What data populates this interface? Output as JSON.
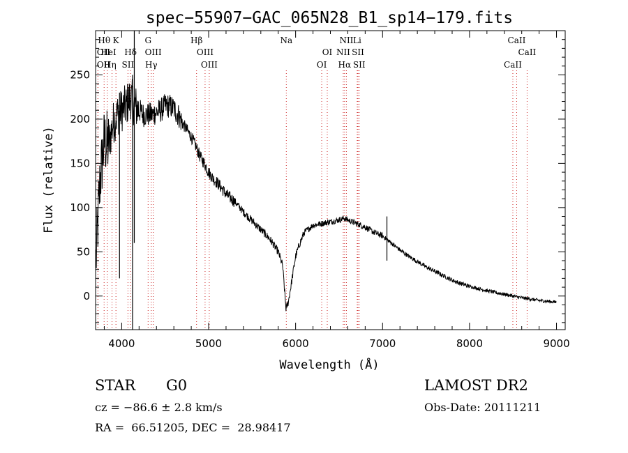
{
  "chart_data": {
    "type": "line",
    "title": "spec−55907−GAC_065N28_B1_sp14−179.fits",
    "xlabel": "Wavelength (Å)",
    "ylabel": "Flux (relative)",
    "xlim": [
      3700,
      9100
    ],
    "ylim": [
      -38,
      300
    ],
    "xticks": [
      4000,
      5000,
      6000,
      7000,
      8000,
      9000
    ],
    "xtick_labels": [
      "4000",
      "5000",
      "6000",
      "7000",
      "8000",
      "9000"
    ],
    "yticks": [
      0,
      50,
      100,
      150,
      200,
      250
    ],
    "ytick_labels": [
      "0",
      "50",
      "100",
      "150",
      "200",
      "250"
    ],
    "grid": false,
    "line_color": "#000000",
    "marker_color": "#cc2222",
    "spectrum_envelope": {
      "x": [
        3705,
        3750,
        3800,
        3850,
        3900,
        3950,
        4000,
        4050,
        4100,
        4150,
        4200,
        4250,
        4300,
        4350,
        4400,
        4450,
        4500,
        4550,
        4600,
        4650,
        4700,
        4750,
        4800,
        4850,
        4900,
        4950,
        5000,
        5050,
        5100,
        5150,
        5200,
        5300,
        5400,
        5500,
        5600,
        5700,
        5800,
        5850,
        5890,
        5920,
        5960,
        6000,
        6050,
        6100,
        6200,
        6300,
        6400,
        6500,
        6560,
        6600,
        6650,
        6700,
        6800,
        6900,
        7000,
        7100,
        7200,
        7300,
        7400,
        7500,
        7600,
        7700,
        7800,
        7900,
        8000,
        8200,
        8400,
        8600,
        8800,
        9000
      ],
      "y": [
        40,
        130,
        175,
        170,
        195,
        205,
        210,
        215,
        225,
        215,
        210,
        205,
        205,
        205,
        208,
        210,
        215,
        215,
        212,
        205,
        195,
        188,
        180,
        170,
        158,
        150,
        140,
        133,
        128,
        122,
        115,
        107,
        95,
        85,
        75,
        65,
        50,
        35,
        -15,
        -5,
        20,
        45,
        60,
        72,
        80,
        82,
        84,
        86,
        88,
        86,
        84,
        82,
        78,
        72,
        68,
        60,
        52,
        45,
        39,
        33,
        28,
        23,
        18,
        14,
        11,
        6,
        2,
        -2,
        -5,
        -7
      ]
    },
    "line_markers": [
      {
        "label": "Hθ",
        "wavelength": 3798,
        "row": 0,
        "dx": 0
      },
      {
        "label": "K",
        "wavelength": 3934,
        "row": 0,
        "dx": 0
      },
      {
        "label": "G",
        "wavelength": 4304,
        "row": 0,
        "dx": 0
      },
      {
        "label": "Hβ",
        "wavelength": 4861,
        "row": 0,
        "dx": 0
      },
      {
        "label": "Na",
        "wavelength": 5893,
        "row": 0,
        "dx": 0
      },
      {
        "label": "NII",
        "wavelength": 6584,
        "row": 0,
        "dx": 0
      },
      {
        "label": "Li",
        "wavelength": 6708,
        "row": 0,
        "dx": 0
      },
      {
        "label": "CaII",
        "wavelength": 8542,
        "row": 0,
        "dx": 0
      },
      {
        "label": "OII",
        "wavelength": 3727,
        "row": 1,
        "dx": 8
      },
      {
        "label": "HeI",
        "wavelength": 3889,
        "row": 1,
        "dx": -5
      },
      {
        "label": "Hδ",
        "wavelength": 4102,
        "row": 1,
        "dx": 0
      },
      {
        "label": "OIII",
        "wavelength": 4363,
        "row": 1,
        "dx": 0
      },
      {
        "label": "OIII",
        "wavelength": 4959,
        "row": 1,
        "dx": 0
      },
      {
        "label": "OI",
        "wavelength": 6364,
        "row": 1,
        "dx": 0
      },
      {
        "label": "NII",
        "wavelength": 6548,
        "row": 1,
        "dx": 0
      },
      {
        "label": "SII",
        "wavelength": 6717,
        "row": 1,
        "dx": 0
      },
      {
        "label": "CaII",
        "wavelength": 8662,
        "row": 1,
        "dx": 0
      },
      {
        "label": "OII",
        "wavelength": 3727,
        "row": 2,
        "dx": 8
      },
      {
        "label": "Hη",
        "wavelength": 3835,
        "row": 2,
        "dx": 4
      },
      {
        "label": "SII",
        "wavelength": 4072,
        "row": 2,
        "dx": 0
      },
      {
        "label": "Hγ",
        "wavelength": 4340,
        "row": 2,
        "dx": 0
      },
      {
        "label": "OIII",
        "wavelength": 5007,
        "row": 2,
        "dx": 0
      },
      {
        "label": "OI",
        "wavelength": 6300,
        "row": 2,
        "dx": 0
      },
      {
        "label": "Hα",
        "wavelength": 6563,
        "row": 2,
        "dx": 0
      },
      {
        "label": "SII",
        "wavelength": 6731,
        "row": 2,
        "dx": 0
      },
      {
        "label": "CaII",
        "wavelength": 8498,
        "row": 2,
        "dx": 0
      }
    ]
  },
  "info": {
    "object_class": "STAR",
    "subclass": "G0",
    "survey": "LAMOST DR2",
    "velocity": "cz = −86.6 ± 2.8 km/s",
    "obs_date": "Obs-Date: 20111211",
    "coordinates": "RA =  66.51205, DEC =  28.98417"
  }
}
